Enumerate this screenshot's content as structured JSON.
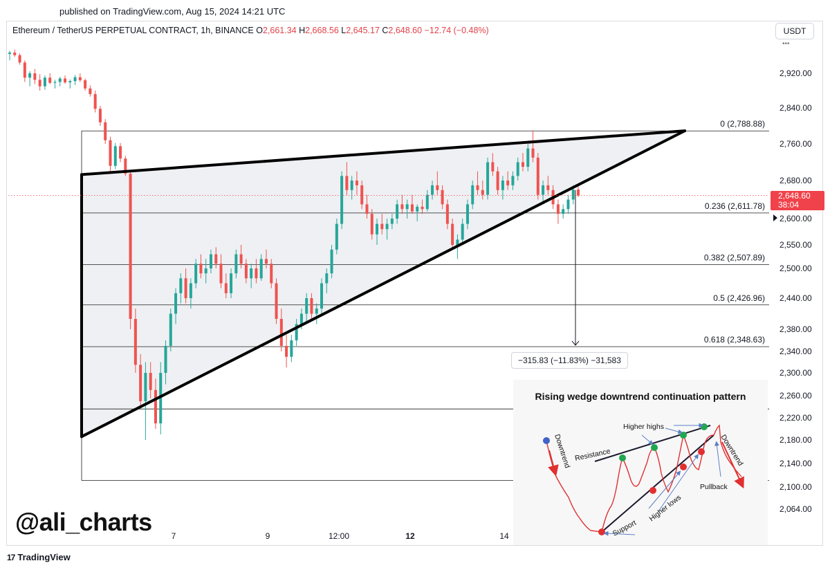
{
  "published": "published on TradingView.com, Aug 15, 2024 14:21 UTC",
  "legend": {
    "symbol": "Ethereum / TetherUS PERPETUAL CONTRACT, 1h, BINANCE",
    "o_label": "O",
    "o_value": "2,661.34",
    "h_label": "H",
    "h_value": "2,668.56",
    "l_label": "L",
    "l_value": "2,645.17",
    "c_label": "C",
    "c_value": "2,648.60",
    "change": "−12.74 (−0.48%)"
  },
  "currency": "USDT",
  "currency_dots": "•••",
  "price_tag": {
    "price": "2,648.60",
    "countdown": "38:04"
  },
  "measure_label": "−315.83 (−11.83%) −31,583",
  "watermark": "@ali_charts",
  "footer_logo": "TradingView",
  "footer_logo_mark": "17",
  "colors": {
    "up": "#26a69a",
    "down": "#ef5350",
    "wedge_fill": "#eef0f3",
    "price_line": "#f0424a"
  },
  "chart_data": {
    "type": "candlestick",
    "symbol": "ETHUSDT",
    "interval": "1h",
    "y_axis": {
      "ticks": [
        2920,
        2840,
        2760,
        2680,
        2600,
        2550,
        2500,
        2440,
        2380,
        2340,
        2300,
        2260,
        2220,
        2180,
        2140,
        2100,
        2064
      ],
      "tick_labels": [
        "2,920.00",
        "2,840.00",
        "2,760.00",
        "2,680.00",
        "2,600.00",
        "2,550.00",
        "2,500.00",
        "2,440.00",
        "2,380.00",
        "2,340.00",
        "2,300.00",
        "2,260.00",
        "2,220.00",
        "2,180.00",
        "2,140.00",
        "2,100.00",
        "2,064.00"
      ]
    },
    "x_axis": {
      "tick_labels": [
        "7",
        "9",
        "12:00",
        "12",
        "14"
      ]
    },
    "close_price": 2648.6,
    "fib_levels": [
      {
        "label": "0 (2,788.88)",
        "price": 2788.88
      },
      {
        "label": "0.236 (2,611.78)",
        "price": 2611.78
      },
      {
        "label": "0.382 (2,507.89)",
        "price": 2507.89
      },
      {
        "label": "0.5 (2,426.96)",
        "price": 2426.96
      },
      {
        "label": "0.618 (2,348.63)",
        "price": 2348.63
      },
      {
        "label": "",
        "price": 2236.0
      },
      {
        "label": "",
        "price": 2111.0
      }
    ],
    "wedge": {
      "upper": [
        [
          0.0,
          2693
        ],
        [
          1.0,
          2789
        ]
      ],
      "lower": [
        [
          0.0,
          2186
        ],
        [
          1.0,
          2789
        ]
      ]
    },
    "projection": {
      "from": 2660,
      "to": 2348.63
    },
    "candles": [
      [
        2965,
        2972,
        2950,
        2968
      ],
      [
        2968,
        2975,
        2958,
        2962
      ],
      [
        2962,
        2966,
        2940,
        2945
      ],
      [
        2945,
        2950,
        2900,
        2910
      ],
      [
        2910,
        2925,
        2890,
        2920
      ],
      [
        2920,
        2930,
        2895,
        2905
      ],
      [
        2905,
        2918,
        2880,
        2890
      ],
      [
        2890,
        2915,
        2882,
        2910
      ],
      [
        2910,
        2920,
        2895,
        2898
      ],
      [
        2898,
        2905,
        2885,
        2900
      ],
      [
        2900,
        2912,
        2890,
        2908
      ],
      [
        2908,
        2915,
        2896,
        2899
      ],
      [
        2899,
        2906,
        2885,
        2902
      ],
      [
        2902,
        2916,
        2893,
        2911
      ],
      [
        2911,
        2920,
        2900,
        2904
      ],
      [
        2904,
        2908,
        2880,
        2885
      ],
      [
        2885,
        2892,
        2866,
        2872
      ],
      [
        2872,
        2880,
        2830,
        2838
      ],
      [
        2838,
        2845,
        2800,
        2808
      ],
      [
        2808,
        2815,
        2760,
        2768
      ],
      [
        2768,
        2776,
        2700,
        2712
      ],
      [
        2712,
        2762,
        2705,
        2755
      ],
      [
        2755,
        2762,
        2720,
        2728
      ],
      [
        2728,
        2734,
        2690,
        2695
      ],
      [
        2695,
        2700,
        2380,
        2400
      ],
      [
        2400,
        2420,
        2300,
        2315
      ],
      [
        2315,
        2335,
        2240,
        2250
      ],
      [
        2250,
        2320,
        2180,
        2300
      ],
      [
        2300,
        2320,
        2255,
        2270
      ],
      [
        2270,
        2290,
        2200,
        2210
      ],
      [
        2210,
        2320,
        2190,
        2300
      ],
      [
        2300,
        2360,
        2280,
        2350
      ],
      [
        2350,
        2420,
        2340,
        2410
      ],
      [
        2410,
        2460,
        2390,
        2450
      ],
      [
        2450,
        2490,
        2430,
        2480
      ],
      [
        2480,
        2500,
        2430,
        2440
      ],
      [
        2440,
        2480,
        2420,
        2470
      ],
      [
        2470,
        2520,
        2460,
        2510
      ],
      [
        2510,
        2530,
        2480,
        2490
      ],
      [
        2490,
        2520,
        2470,
        2500
      ],
      [
        2500,
        2540,
        2490,
        2530
      ],
      [
        2530,
        2545,
        2500,
        2510
      ],
      [
        2510,
        2530,
        2460,
        2470
      ],
      [
        2470,
        2490,
        2440,
        2450
      ],
      [
        2450,
        2500,
        2440,
        2490
      ],
      [
        2490,
        2540,
        2480,
        2530
      ],
      [
        2530,
        2550,
        2500,
        2510
      ],
      [
        2510,
        2520,
        2470,
        2480
      ],
      [
        2480,
        2510,
        2460,
        2500
      ],
      [
        2500,
        2520,
        2470,
        2480
      ],
      [
        2480,
        2530,
        2475,
        2520
      ],
      [
        2520,
        2540,
        2500,
        2510
      ],
      [
        2510,
        2520,
        2460,
        2470
      ],
      [
        2470,
        2480,
        2390,
        2400
      ],
      [
        2400,
        2420,
        2340,
        2350
      ],
      [
        2350,
        2370,
        2310,
        2330
      ],
      [
        2330,
        2370,
        2320,
        2360
      ],
      [
        2360,
        2400,
        2350,
        2390
      ],
      [
        2390,
        2420,
        2380,
        2410
      ],
      [
        2410,
        2450,
        2390,
        2440
      ],
      [
        2440,
        2450,
        2400,
        2410
      ],
      [
        2410,
        2430,
        2390,
        2420
      ],
      [
        2420,
        2480,
        2410,
        2470
      ],
      [
        2470,
        2500,
        2450,
        2490
      ],
      [
        2490,
        2550,
        2480,
        2540
      ],
      [
        2540,
        2600,
        2530,
        2590
      ],
      [
        2590,
        2700,
        2580,
        2690
      ],
      [
        2690,
        2720,
        2650,
        2660
      ],
      [
        2660,
        2690,
        2640,
        2680
      ],
      [
        2680,
        2700,
        2650,
        2670
      ],
      [
        2670,
        2680,
        2620,
        2630
      ],
      [
        2630,
        2650,
        2600,
        2610
      ],
      [
        2610,
        2620,
        2560,
        2570
      ],
      [
        2570,
        2600,
        2550,
        2590
      ],
      [
        2590,
        2610,
        2570,
        2580
      ],
      [
        2580,
        2600,
        2560,
        2590
      ],
      [
        2590,
        2610,
        2580,
        2600
      ],
      [
        2600,
        2640,
        2590,
        2630
      ],
      [
        2630,
        2650,
        2610,
        2620
      ],
      [
        2620,
        2640,
        2600,
        2630
      ],
      [
        2630,
        2650,
        2610,
        2615
      ],
      [
        2615,
        2630,
        2595,
        2625
      ],
      [
        2625,
        2640,
        2610,
        2620
      ],
      [
        2620,
        2660,
        2615,
        2650
      ],
      [
        2650,
        2680,
        2640,
        2670
      ],
      [
        2670,
        2700,
        2650,
        2660
      ],
      [
        2660,
        2670,
        2620,
        2630
      ],
      [
        2630,
        2640,
        2580,
        2590
      ],
      [
        2590,
        2600,
        2540,
        2550
      ],
      [
        2550,
        2570,
        2520,
        2560
      ],
      [
        2560,
        2600,
        2550,
        2590
      ],
      [
        2590,
        2640,
        2580,
        2630
      ],
      [
        2630,
        2680,
        2620,
        2670
      ],
      [
        2670,
        2700,
        2650,
        2660
      ],
      [
        2660,
        2680,
        2640,
        2650
      ],
      [
        2650,
        2730,
        2640,
        2720
      ],
      [
        2720,
        2740,
        2690,
        2700
      ],
      [
        2700,
        2710,
        2650,
        2660
      ],
      [
        2660,
        2690,
        2640,
        2680
      ],
      [
        2680,
        2700,
        2660,
        2670
      ],
      [
        2670,
        2700,
        2660,
        2690
      ],
      [
        2690,
        2730,
        2680,
        2720
      ],
      [
        2720,
        2740,
        2700,
        2710
      ],
      [
        2710,
        2760,
        2700,
        2750
      ],
      [
        2750,
        2790,
        2720,
        2730
      ],
      [
        2730,
        2740,
        2640,
        2650
      ],
      [
        2650,
        2680,
        2630,
        2670
      ],
      [
        2670,
        2690,
        2650,
        2660
      ],
      [
        2660,
        2670,
        2620,
        2630
      ],
      [
        2630,
        2640,
        2590,
        2610
      ],
      [
        2610,
        2630,
        2600,
        2620
      ],
      [
        2620,
        2650,
        2610,
        2640
      ],
      [
        2640,
        2670,
        2630,
        2661
      ],
      [
        2661,
        2668.56,
        2645.17,
        2648.6
      ]
    ]
  }
}
